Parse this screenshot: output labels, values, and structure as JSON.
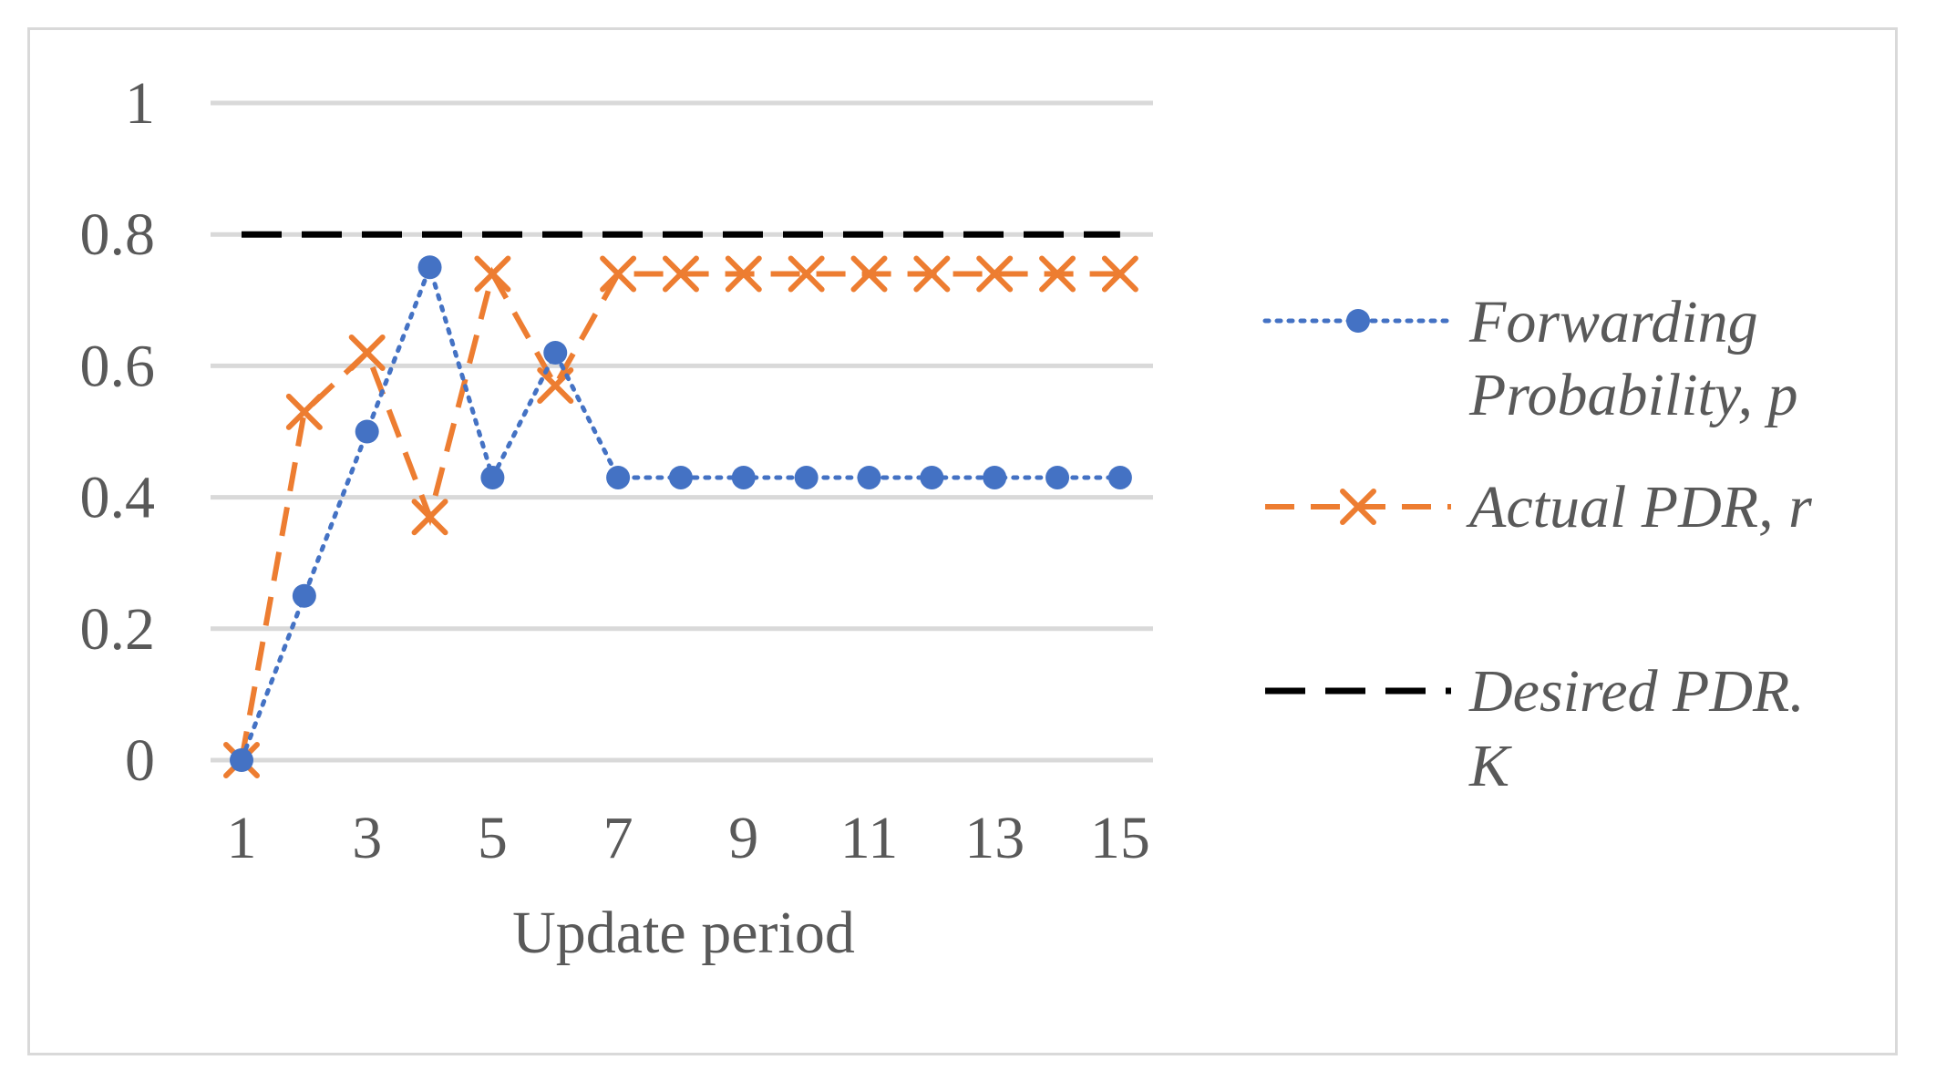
{
  "chart_data": {
    "type": "line",
    "title": "",
    "xlabel": "Update period",
    "ylabel": "",
    "x": [
      1,
      2,
      3,
      4,
      5,
      6,
      7,
      8,
      9,
      10,
      11,
      12,
      13,
      14,
      15
    ],
    "x_tick_labels": [
      "1",
      "3",
      "5",
      "7",
      "9",
      "11",
      "13",
      "15"
    ],
    "y_tick_labels": [
      "0",
      "0.2",
      "0.4",
      "0.6",
      "0.8",
      "1"
    ],
    "xlim": [
      1,
      15
    ],
    "ylim": [
      0,
      1
    ],
    "grid": true,
    "legend_position": "right",
    "series": [
      {
        "name_lines": [
          "Forwarding",
          "Probability, p"
        ],
        "color": "#4472c4",
        "line_style": "dotted",
        "marker": "circle",
        "values": [
          0,
          0.25,
          0.5,
          0.75,
          0.43,
          0.62,
          0.43,
          0.43,
          0.43,
          0.43,
          0.43,
          0.43,
          0.43,
          0.43,
          0.43
        ]
      },
      {
        "name_lines": [
          "Actual PDR, r"
        ],
        "color": "#ed7d31",
        "line_style": "dashed",
        "marker": "x",
        "values": [
          0,
          0.53,
          0.62,
          0.37,
          0.74,
          0.57,
          0.74,
          0.74,
          0.74,
          0.74,
          0.74,
          0.74,
          0.74,
          0.74,
          0.74
        ]
      },
      {
        "name_lines": [
          "Desired PDR.",
          "K"
        ],
        "color": "#000000",
        "line_style": "long-dash",
        "marker": "none",
        "values": [
          0.8,
          0.8,
          0.8,
          0.8,
          0.8,
          0.8,
          0.8,
          0.8,
          0.8,
          0.8,
          0.8,
          0.8,
          0.8,
          0.8,
          0.8
        ]
      }
    ]
  }
}
